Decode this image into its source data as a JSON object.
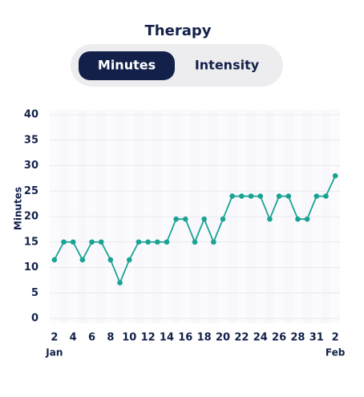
{
  "tabs": [
    "Minutes",
    "Intensity"
  ],
  "chart_data": {
    "type": "line",
    "title": "Therapy",
    "ylabel": "Minutes",
    "categories": [
      "2",
      null,
      "4",
      null,
      "6",
      null,
      "8",
      null,
      "10",
      null,
      "12",
      null,
      "14",
      null,
      "16",
      null,
      "18",
      null,
      "20",
      null,
      "22",
      null,
      "24",
      null,
      "26",
      null,
      "28",
      null,
      "31",
      null,
      "2"
    ],
    "month_labels": [
      "Jan",
      null,
      null,
      null,
      null,
      null,
      null,
      null,
      null,
      null,
      null,
      null,
      null,
      null,
      null,
      null,
      null,
      null,
      null,
      null,
      null,
      null,
      null,
      null,
      null,
      null,
      null,
      null,
      null,
      null,
      "Feb"
    ],
    "series": [
      {
        "name": "Minutes",
        "color": "#1aa392",
        "values": [
          11.5,
          15,
          15,
          11.5,
          15,
          15,
          11.5,
          7,
          11.5,
          15,
          15,
          15,
          15,
          19.5,
          19.5,
          15,
          19.5,
          15,
          19.5,
          24,
          24,
          24,
          24,
          19.5,
          24,
          24,
          19.5,
          19.5,
          24,
          24,
          28
        ]
      }
    ],
    "ylim": [
      0,
      40
    ],
    "yticks": [
      0,
      5,
      10,
      15,
      20,
      25,
      30,
      35,
      40
    ],
    "grid": true
  }
}
